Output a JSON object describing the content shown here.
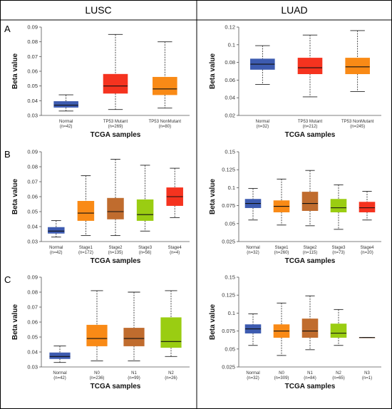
{
  "headers": {
    "left": "LUSC",
    "right": "LUAD"
  },
  "panel_letters": [
    "A",
    "B",
    "C"
  ],
  "colors": {
    "normal": "#3d5bb0",
    "red": "#f5331f",
    "orange": "#f98a16",
    "brown": "#c06c2e",
    "lime": "#9acd12",
    "frame": "#000000"
  },
  "chart_data": [
    {
      "type": "box",
      "group": "LUSC",
      "panel": "A",
      "ylabel": "Beta value",
      "xlabel": "TCGA samples",
      "ylim": [
        0.03,
        0.09
      ],
      "yticks": [
        0.03,
        0.04,
        0.05,
        0.06,
        0.07,
        0.08,
        0.09
      ],
      "ytick_labels": [
        "0.03",
        "0.04",
        "0.05",
        "0.06",
        "0.07",
        "0.08",
        "0.09"
      ],
      "boxes": [
        {
          "label": "Normal",
          "n": "(n=42)",
          "color": "normal",
          "min": 0.033,
          "q1": 0.0355,
          "median": 0.037,
          "q3": 0.0395,
          "max": 0.044
        },
        {
          "label": "TP53 Mutant",
          "n": "(n=269)",
          "color": "red",
          "min": 0.034,
          "q1": 0.045,
          "median": 0.05,
          "q3": 0.058,
          "max": 0.085
        },
        {
          "label": "TP53 NonMutant",
          "n": "(n=80)",
          "color": "orange",
          "min": 0.035,
          "q1": 0.044,
          "median": 0.048,
          "q3": 0.056,
          "max": 0.08
        }
      ]
    },
    {
      "type": "box",
      "group": "LUAD",
      "panel": "A",
      "ylabel": "Beta value",
      "xlabel": "TCGA samples",
      "ylim": [
        0.02,
        0.12
      ],
      "yticks": [
        0.02,
        0.04,
        0.06,
        0.08,
        0.1,
        0.12
      ],
      "ytick_labels": [
        "0.02",
        "0.04",
        "0.06",
        "0.08",
        "0.1",
        "0.12"
      ],
      "boxes": [
        {
          "label": "Normal",
          "n": "(n=32)",
          "color": "normal",
          "min": 0.055,
          "q1": 0.072,
          "median": 0.078,
          "q3": 0.084,
          "max": 0.099
        },
        {
          "label": "TP53 Mutant",
          "n": "(n=212)",
          "color": "red",
          "min": 0.041,
          "q1": 0.067,
          "median": 0.074,
          "q3": 0.085,
          "max": 0.111
        },
        {
          "label": "TP53 NonMutant",
          "n": "(n=245)",
          "color": "orange",
          "min": 0.047,
          "q1": 0.067,
          "median": 0.075,
          "q3": 0.085,
          "max": 0.116
        }
      ]
    },
    {
      "type": "box",
      "group": "LUSC",
      "panel": "B",
      "ylabel": "Beta value",
      "xlabel": "TCGA samples",
      "ylim": [
        0.03,
        0.09
      ],
      "yticks": [
        0.03,
        0.04,
        0.05,
        0.06,
        0.07,
        0.08,
        0.09
      ],
      "ytick_labels": [
        "0.03",
        "0.04",
        "0.05",
        "0.06",
        "0.07",
        "0.08",
        "0.09"
      ],
      "boxes": [
        {
          "label": "Normal",
          "n": "(n=42)",
          "color": "normal",
          "min": 0.033,
          "q1": 0.0355,
          "median": 0.037,
          "q3": 0.0395,
          "max": 0.044
        },
        {
          "label": "Stage1",
          "n": "(n=172)",
          "color": "orange",
          "min": 0.034,
          "q1": 0.044,
          "median": 0.049,
          "q3": 0.057,
          "max": 0.074
        },
        {
          "label": "Stage2",
          "n": "(n=135)",
          "color": "brown",
          "min": 0.034,
          "q1": 0.045,
          "median": 0.05,
          "q3": 0.059,
          "max": 0.085
        },
        {
          "label": "Stage3",
          "n": "(n=56)",
          "color": "lime",
          "min": 0.037,
          "q1": 0.044,
          "median": 0.048,
          "q3": 0.058,
          "max": 0.081
        },
        {
          "label": "Stage4",
          "n": "(n=4)",
          "color": "red",
          "min": 0.046,
          "q1": 0.054,
          "median": 0.06,
          "q3": 0.066,
          "max": 0.079
        }
      ]
    },
    {
      "type": "box",
      "group": "LUAD",
      "panel": "B",
      "ylabel": "Beta value",
      "xlabel": "TCGA samples",
      "ylim": [
        0.025,
        0.15
      ],
      "yticks": [
        0.025,
        0.05,
        0.075,
        0.1,
        0.125,
        0.15
      ],
      "ytick_labels": [
        "0.025",
        "0.05",
        "0.075",
        "0.1",
        "0.125",
        "0.15"
      ],
      "boxes": [
        {
          "label": "Normal",
          "n": "(n=32)",
          "color": "normal",
          "min": 0.055,
          "q1": 0.072,
          "median": 0.078,
          "q3": 0.084,
          "max": 0.099
        },
        {
          "label": "Stage1",
          "n": "(n=260)",
          "color": "orange",
          "min": 0.048,
          "q1": 0.066,
          "median": 0.074,
          "q3": 0.082,
          "max": 0.112
        },
        {
          "label": "Stage2",
          "n": "(n=115)",
          "color": "brown",
          "min": 0.047,
          "q1": 0.068,
          "median": 0.078,
          "q3": 0.094,
          "max": 0.124
        },
        {
          "label": "Stage3",
          "n": "(n=73)",
          "color": "lime",
          "min": 0.042,
          "q1": 0.066,
          "median": 0.072,
          "q3": 0.084,
          "max": 0.104
        },
        {
          "label": "Stage4",
          "n": "(n=20)",
          "color": "red",
          "min": 0.055,
          "q1": 0.066,
          "median": 0.072,
          "q3": 0.08,
          "max": 0.095
        }
      ]
    },
    {
      "type": "box",
      "group": "LUSC",
      "panel": "C",
      "ylabel": "Beta value",
      "xlabel": "TCGA samples",
      "ylim": [
        0.03,
        0.09
      ],
      "yticks": [
        0.03,
        0.04,
        0.05,
        0.06,
        0.07,
        0.08,
        0.09
      ],
      "ytick_labels": [
        "0.03",
        "0.04",
        "0.05",
        "0.06",
        "0.07",
        "0.08",
        "0.09"
      ],
      "boxes": [
        {
          "label": "Normal",
          "n": "(n=42)",
          "color": "normal",
          "min": 0.033,
          "q1": 0.0355,
          "median": 0.037,
          "q3": 0.0395,
          "max": 0.044
        },
        {
          "label": "N0",
          "n": "(n=236)",
          "color": "orange",
          "min": 0.034,
          "q1": 0.044,
          "median": 0.049,
          "q3": 0.058,
          "max": 0.081
        },
        {
          "label": "N1",
          "n": "(n=99)",
          "color": "brown",
          "min": 0.034,
          "q1": 0.044,
          "median": 0.049,
          "q3": 0.056,
          "max": 0.08
        },
        {
          "label": "N2",
          "n": "(n=26)",
          "color": "lime",
          "min": 0.037,
          "q1": 0.043,
          "median": 0.047,
          "q3": 0.063,
          "max": 0.081
        }
      ]
    },
    {
      "type": "box",
      "group": "LUAD",
      "panel": "C",
      "ylabel": "Beta value",
      "xlabel": "TCGA samples",
      "ylim": [
        0.025,
        0.15
      ],
      "yticks": [
        0.025,
        0.05,
        0.075,
        0.1,
        0.125,
        0.15
      ],
      "ytick_labels": [
        "0.025",
        "0.05",
        "0.075",
        "0.1",
        "0.125",
        "0.15"
      ],
      "boxes": [
        {
          "label": "Normal",
          "n": "(n=32)",
          "color": "normal",
          "min": 0.055,
          "q1": 0.072,
          "median": 0.078,
          "q3": 0.084,
          "max": 0.099
        },
        {
          "label": "N0",
          "n": "(n=309)",
          "color": "orange",
          "min": 0.041,
          "q1": 0.066,
          "median": 0.075,
          "q3": 0.084,
          "max": 0.114
        },
        {
          "label": "N1",
          "n": "(n=84)",
          "color": "brown",
          "min": 0.049,
          "q1": 0.066,
          "median": 0.075,
          "q3": 0.092,
          "max": 0.124
        },
        {
          "label": "N2",
          "n": "(n=65)",
          "color": "lime",
          "min": 0.055,
          "q1": 0.066,
          "median": 0.072,
          "q3": 0.085,
          "max": 0.105
        },
        {
          "label": "N3",
          "n": "(n=1)",
          "color": "brown",
          "min": 0.066,
          "q1": 0.066,
          "median": 0.066,
          "q3": 0.066,
          "max": 0.066
        }
      ]
    }
  ]
}
